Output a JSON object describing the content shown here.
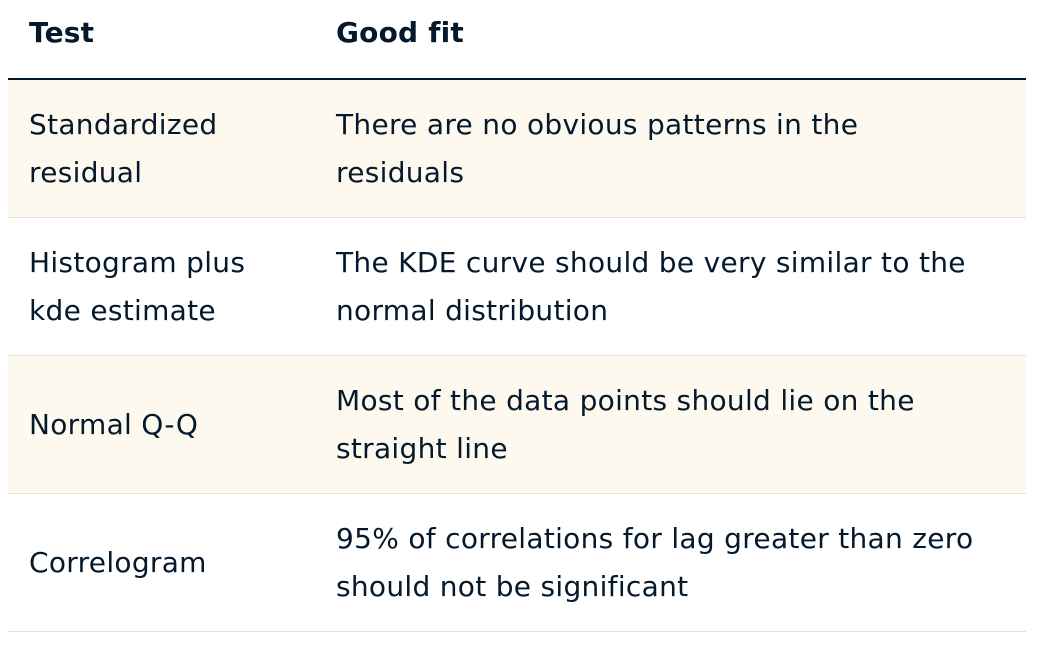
{
  "table": {
    "headers": {
      "test": "Test",
      "good_fit": "Good fit"
    },
    "rows": [
      {
        "test": [
          "Standardized",
          "residual"
        ],
        "good_fit": [
          "There are no obvious patterns in the",
          "residuals"
        ]
      },
      {
        "test": [
          "Histogram plus",
          "kde estimate"
        ],
        "good_fit": [
          "The KDE curve should be very similar to the",
          "normal distribution"
        ]
      },
      {
        "test": [
          "Normal Q-Q"
        ],
        "good_fit": [
          "Most of the data points should lie on the",
          "straight line"
        ]
      },
      {
        "test": [
          "Correlogram"
        ],
        "good_fit": [
          "95% of correlations for lag greater than zero",
          "should not be significant"
        ]
      }
    ],
    "colors": {
      "text": "#05192d",
      "shaded_row": "#fef9ee",
      "row_divider": "#e5e1da"
    }
  }
}
